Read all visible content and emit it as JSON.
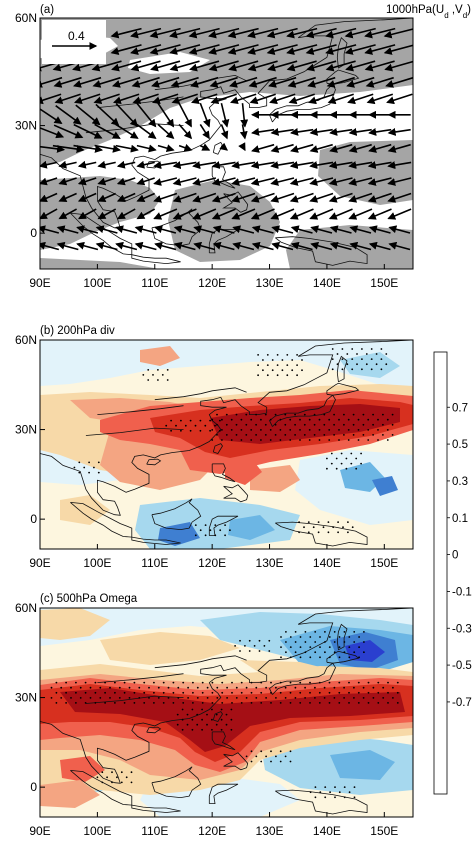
{
  "figure": {
    "panels": [
      {
        "id": "a",
        "label": "(a)",
        "title_main": "1000hPa(U",
        "title_sub1": "d",
        "title_sep": " ,V",
        "title_sub2": "d",
        "title_close": ")",
        "ref_vector_label": "0.4",
        "ref_vector_value": 0.4,
        "shading": "gray regions (positive)"
      },
      {
        "id": "b",
        "label": "(b) 200hPa div",
        "field": "divergence"
      },
      {
        "id": "c",
        "label": "(c) 500hPa Omega",
        "field": "omega"
      }
    ],
    "x_ticks": [
      "90E",
      "100E",
      "110E",
      "120E",
      "130E",
      "140E",
      "150E"
    ],
    "x_tick_values": [
      90,
      100,
      110,
      120,
      130,
      140,
      150
    ],
    "y_ticks": [
      "60N",
      "30N",
      "0"
    ],
    "y_tick_values": [
      60,
      30,
      0
    ],
    "lon_range": [
      90,
      155
    ],
    "lat_range": [
      -10,
      60
    ],
    "colorbar": {
      "labels": [
        "0.7",
        "0.5",
        "0.3",
        "0.1",
        "0",
        "-0.1",
        "-0.3",
        "-0.5",
        "-0.7"
      ],
      "colors": [
        "#a50f15",
        "#d7301f",
        "#f0604d",
        "#f4a582",
        "#f7d9a8",
        "#fdf6df",
        "#e2f3fa",
        "#a6d8ee",
        "#6cb6e4",
        "#3f7fd1",
        "#2a3fcf",
        "#1a18c4"
      ]
    }
  }
}
